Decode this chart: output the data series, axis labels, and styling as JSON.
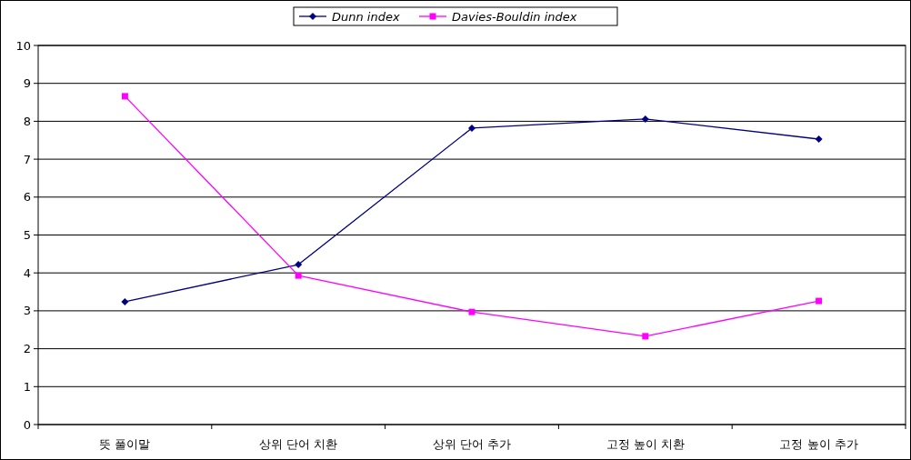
{
  "chart_data": {
    "type": "line",
    "categories": [
      "뜻 풀이말",
      "상위 단어 치환",
      "상위 단어 추가",
      "고정 높이 치환",
      "고정 높이 추가"
    ],
    "series": [
      {
        "name": "Dunn index",
        "color": "#000080",
        "marker": "diamond",
        "values": [
          3.24,
          4.22,
          7.82,
          8.06,
          7.53
        ]
      },
      {
        "name": "Davies-Bouldin index",
        "color": "#ff00ff",
        "marker": "square",
        "values": [
          8.66,
          3.93,
          2.97,
          2.33,
          3.26
        ]
      }
    ],
    "ylim": [
      0,
      10
    ],
    "yticks": [
      0,
      1,
      2,
      3,
      4,
      5,
      6,
      7,
      8,
      9,
      10
    ],
    "grid": "y",
    "legend": "top"
  }
}
